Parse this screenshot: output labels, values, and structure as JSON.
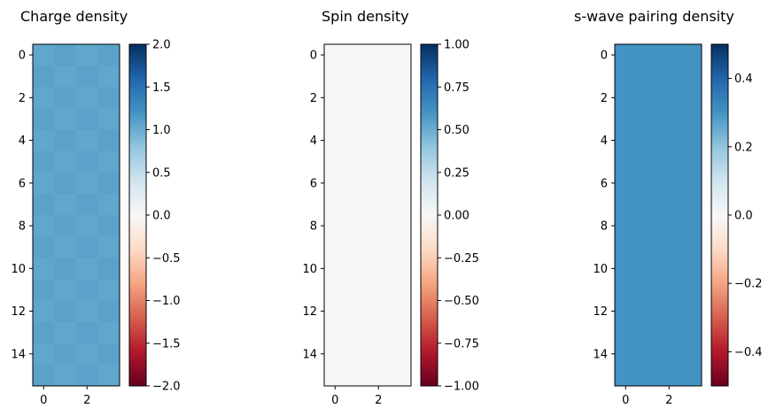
{
  "chart_data": [
    {
      "type": "heatmap",
      "title": "Charge density",
      "colormap": "RdBu",
      "rows": 16,
      "cols": 4,
      "values": [
        [
          1.05,
          1.08,
          1.05,
          1.08
        ],
        [
          1.08,
          1.05,
          1.08,
          1.05
        ],
        [
          1.05,
          1.08,
          1.05,
          1.08
        ],
        [
          1.08,
          1.05,
          1.08,
          1.05
        ],
        [
          1.05,
          1.08,
          1.05,
          1.08
        ],
        [
          1.08,
          1.05,
          1.08,
          1.05
        ],
        [
          1.05,
          1.08,
          1.05,
          1.08
        ],
        [
          1.08,
          1.05,
          1.08,
          1.05
        ],
        [
          1.05,
          1.08,
          1.05,
          1.08
        ],
        [
          1.08,
          1.05,
          1.08,
          1.05
        ],
        [
          1.05,
          1.08,
          1.05,
          1.08
        ],
        [
          1.08,
          1.05,
          1.08,
          1.05
        ],
        [
          1.05,
          1.08,
          1.05,
          1.08
        ],
        [
          1.08,
          1.05,
          1.08,
          1.05
        ],
        [
          1.05,
          1.08,
          1.05,
          1.08
        ],
        [
          1.08,
          1.05,
          1.08,
          1.05
        ]
      ],
      "x_ticks": [
        0,
        2
      ],
      "y_ticks": [
        0,
        2,
        4,
        6,
        8,
        10,
        12,
        14
      ],
      "colorbar": {
        "vmin": -2.0,
        "vmax": 2.0,
        "ticks": [
          2.0,
          1.5,
          1.0,
          0.5,
          0.0,
          -0.5,
          -1.0,
          -1.5,
          -2.0
        ],
        "tick_labels": [
          "2.0",
          "1.5",
          "1.0",
          "0.5",
          "0.0",
          "−0.5",
          "−1.0",
          "−1.5",
          "−2.0"
        ]
      }
    },
    {
      "type": "heatmap",
      "title": "Spin density",
      "colormap": "RdBu",
      "rows": 16,
      "cols": 4,
      "values": [
        [
          0,
          0,
          0,
          0
        ],
        [
          0,
          0,
          0,
          0
        ],
        [
          0,
          0,
          0,
          0
        ],
        [
          0,
          0,
          0,
          0
        ],
        [
          0,
          0,
          0,
          0
        ],
        [
          0,
          0,
          0,
          0
        ],
        [
          0,
          0,
          0,
          0
        ],
        [
          0,
          0,
          0,
          0
        ],
        [
          0,
          0,
          0,
          0
        ],
        [
          0,
          0,
          0,
          0
        ],
        [
          0,
          0,
          0,
          0
        ],
        [
          0,
          0,
          0,
          0
        ],
        [
          0,
          0,
          0,
          0
        ],
        [
          0,
          0,
          0,
          0
        ],
        [
          0,
          0,
          0,
          0
        ],
        [
          0,
          0,
          0,
          0
        ]
      ],
      "x_ticks": [
        0,
        2
      ],
      "y_ticks": [
        0,
        2,
        4,
        6,
        8,
        10,
        12,
        14
      ],
      "colorbar": {
        "vmin": -1.0,
        "vmax": 1.0,
        "ticks": [
          1.0,
          0.75,
          0.5,
          0.25,
          0.0,
          -0.25,
          -0.5,
          -0.75,
          -1.0
        ],
        "tick_labels": [
          "1.00",
          "0.75",
          "0.50",
          "0.25",
          "0.00",
          "−0.25",
          "−0.50",
          "−0.75",
          "−1.00"
        ]
      }
    },
    {
      "type": "heatmap",
      "title": "s-wave pairing density",
      "colormap": "RdBu",
      "rows": 16,
      "cols": 4,
      "values": [
        [
          0.3,
          0.3,
          0.3,
          0.3
        ],
        [
          0.3,
          0.3,
          0.3,
          0.3
        ],
        [
          0.3,
          0.3,
          0.3,
          0.3
        ],
        [
          0.3,
          0.3,
          0.3,
          0.3
        ],
        [
          0.3,
          0.3,
          0.3,
          0.3
        ],
        [
          0.3,
          0.3,
          0.3,
          0.3
        ],
        [
          0.3,
          0.3,
          0.3,
          0.3
        ],
        [
          0.3,
          0.3,
          0.3,
          0.3
        ],
        [
          0.3,
          0.3,
          0.3,
          0.3
        ],
        [
          0.3,
          0.3,
          0.3,
          0.3
        ],
        [
          0.3,
          0.3,
          0.3,
          0.3
        ],
        [
          0.3,
          0.3,
          0.3,
          0.3
        ],
        [
          0.3,
          0.3,
          0.3,
          0.3
        ],
        [
          0.3,
          0.3,
          0.3,
          0.3
        ],
        [
          0.3,
          0.3,
          0.3,
          0.3
        ],
        [
          0.3,
          0.3,
          0.3,
          0.3
        ]
      ],
      "x_ticks": [
        0,
        2
      ],
      "y_ticks": [
        0,
        2,
        4,
        6,
        8,
        10,
        12,
        14
      ],
      "colorbar": {
        "vmin": -0.5,
        "vmax": 0.5,
        "ticks": [
          0.4,
          0.2,
          0.0,
          -0.2,
          -0.4
        ],
        "tick_labels": [
          "0.4",
          "0.2",
          "0.0",
          "−0.2",
          "−0.4"
        ]
      }
    }
  ]
}
